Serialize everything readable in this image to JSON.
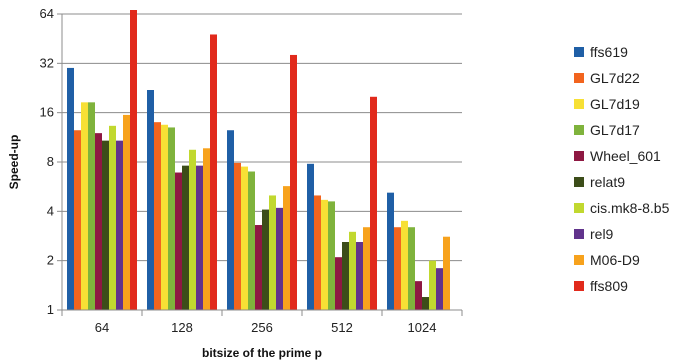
{
  "chart_data": {
    "type": "bar",
    "yscale": "log2",
    "ylim": [
      1,
      64
    ],
    "yticks": [
      "1",
      "2",
      "4",
      "8",
      "16",
      "32",
      "64"
    ],
    "ytick_values": [
      1,
      2,
      4,
      8,
      16,
      32,
      64
    ],
    "xlabel": "bitsize of the prime p",
    "ylabel": "Speed-up",
    "categories": [
      "64",
      "128",
      "256",
      "512",
      "1024"
    ],
    "grid": true,
    "legend_position": "right",
    "series": [
      {
        "name": "ffs619",
        "color": "#1f5fa6",
        "values": [
          30,
          22,
          12.5,
          7.8,
          5.2
        ]
      },
      {
        "name": "GL7d22",
        "color": "#f2641e",
        "values": [
          12.5,
          14,
          7.9,
          5,
          3.2
        ]
      },
      {
        "name": "GL7d19",
        "color": "#f7e035",
        "values": [
          18.5,
          13.5,
          7.5,
          4.7,
          3.5
        ]
      },
      {
        "name": "GL7d17",
        "color": "#7fb33c",
        "values": [
          18.5,
          13,
          7,
          4.6,
          3.2
        ]
      },
      {
        "name": "Wheel_601",
        "color": "#8e1842",
        "values": [
          12,
          6.9,
          3.3,
          2.1,
          1.5
        ]
      },
      {
        "name": "relat9",
        "color": "#3c4d19",
        "values": [
          10.8,
          7.6,
          4.1,
          2.6,
          1.2
        ]
      },
      {
        "name": "cis.mk8-8.b5",
        "color": "#c1d82f",
        "values": [
          13.3,
          9.5,
          5,
          3,
          2
        ]
      },
      {
        "name": "rel9",
        "color": "#61338c",
        "values": [
          10.8,
          7.6,
          4.2,
          2.6,
          1.8
        ]
      },
      {
        "name": "M06-D9",
        "color": "#f7a21c",
        "values": [
          15.5,
          9.7,
          5.7,
          3.2,
          2.8
        ]
      },
      {
        "name": "ffs809",
        "color": "#e12a1c",
        "values": [
          70,
          48,
          36,
          20,
          null
        ]
      }
    ]
  }
}
